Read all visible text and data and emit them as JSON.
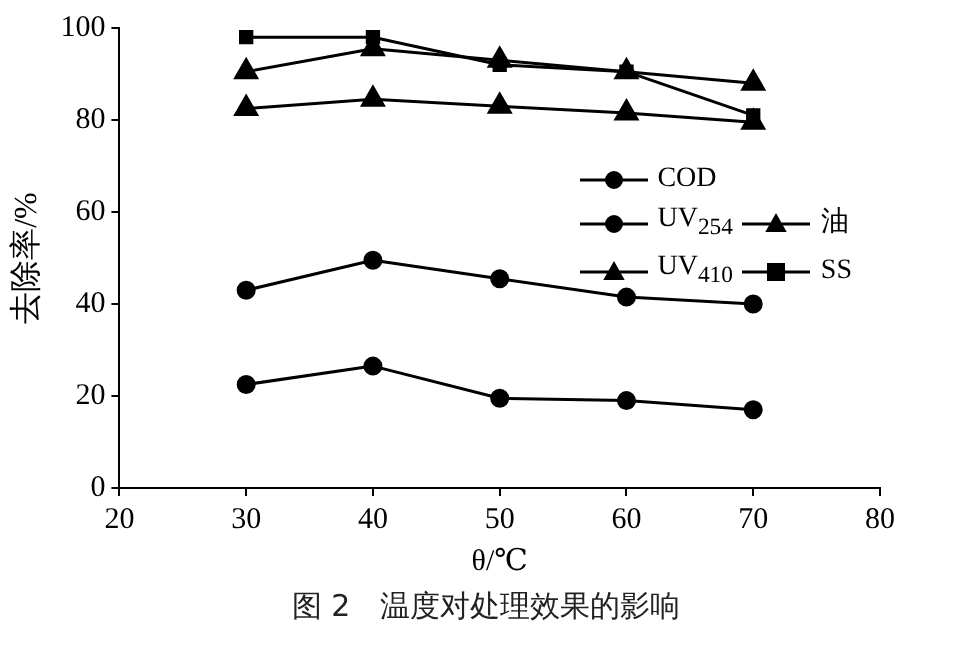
{
  "chart_data": {
    "type": "line",
    "xlabel": "θ/℃",
    "ylabel": "去除率/%",
    "x": [
      30,
      40,
      50,
      60,
      70
    ],
    "xlim": [
      20,
      80
    ],
    "xticks": [
      20,
      30,
      40,
      50,
      60,
      70,
      80
    ],
    "ylim": [
      0,
      100
    ],
    "yticks": [
      0,
      20,
      40,
      60,
      80,
      100
    ],
    "grid": false,
    "legend": "right",
    "line_style": "solid",
    "series": [
      {
        "name": "COD",
        "color": "#000000",
        "marker": "circle",
        "values": [
          22.5,
          26.5,
          19.5,
          19,
          17
        ]
      },
      {
        "name": "UV$_{254}$",
        "color": "#000000",
        "marker": "circle",
        "values": [
          43,
          49.5,
          45.5,
          41.5,
          40
        ]
      },
      {
        "name": "油",
        "color": "#000000",
        "marker": "triangle",
        "values": [
          82.5,
          84.5,
          83,
          81.5,
          79.5
        ]
      },
      {
        "name": "UV$_{410}$",
        "color": "#000000",
        "marker": "triangle",
        "values": [
          90.5,
          95.5,
          93,
          90.5,
          88
        ]
      },
      {
        "name": "SS",
        "color": "#000000",
        "marker": "square",
        "values": [
          98,
          98,
          92,
          90.5,
          81
        ]
      }
    ],
    "annotations": [
      "图 2　温度对处理效果的影响"
    ]
  }
}
